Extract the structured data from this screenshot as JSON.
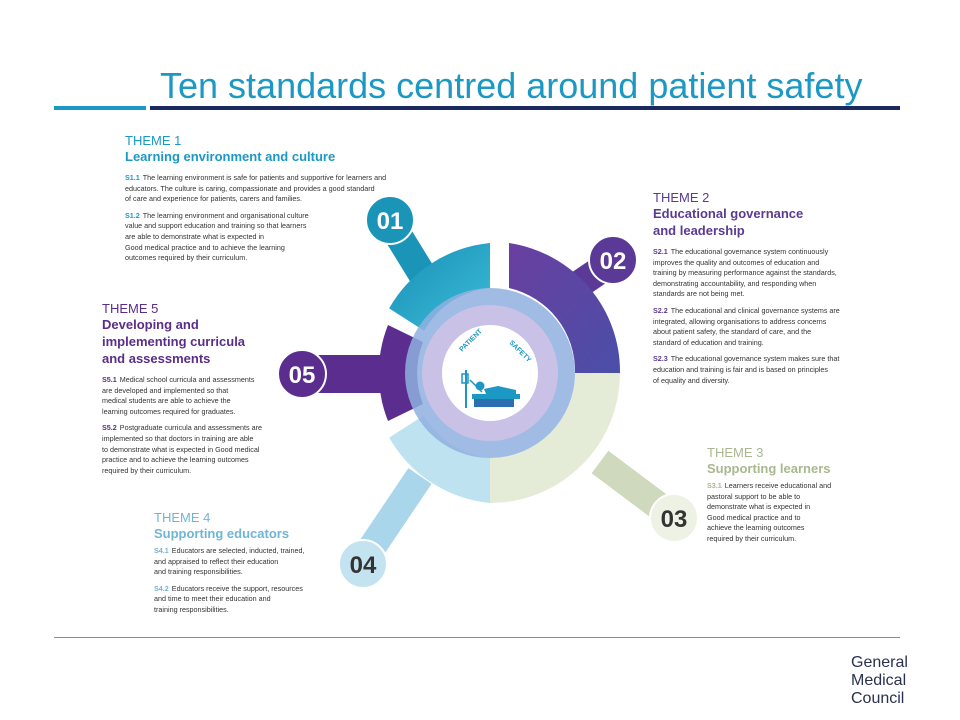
{
  "slide": {
    "title": "Ten standards centred around patient safety"
  },
  "center": {
    "label_left": "PATIENT",
    "label_right": "SAFETY",
    "icon": "patient-in-bed-icon"
  },
  "colors": {
    "title": "#1c98c5",
    "rule_dark": "#1a2a5e",
    "theme1": "#1c98c5",
    "theme2": "#5b3a92",
    "theme3": "#a8b88f",
    "theme4": "#6fb5d6",
    "theme5": "#5b2d8a"
  },
  "themes": [
    {
      "label": "THEME 1",
      "name": "Learning environment and culture",
      "badge": "01",
      "standards": [
        {
          "code": "S1.1",
          "text": "The learning environment is safe for patients and supportive for learners and\neducators. The culture is caring, compassionate and provides a good standard\nof care and experience for patients, carers and families."
        },
        {
          "code": "S1.2",
          "text": "The learning environment and organisational culture\nvalue and support education and training so that learners\nare able to demonstrate what is expected in\nGood medical practice and to achieve the learning\noutcomes required by their curriculum."
        }
      ]
    },
    {
      "label": "THEME 2",
      "name": "Educational governance\nand leadership",
      "badge": "02",
      "standards": [
        {
          "code": "S2.1",
          "text": "The educational governance system continuously\nimproves the quality and outcomes of education and\ntraining by measuring performance against the standards,\ndemonstrating accountability, and responding when\nstandards are not being met."
        },
        {
          "code": "S2.2",
          "text": "The educational and clinical governance systems are\nintegrated, allowing organisations to address concerns\nabout patient safety, the standard of care, and the\nstandard of education and training."
        },
        {
          "code": "S2.3",
          "text": "The educational governance system makes sure that\neducation and training is fair and is based on principles\nof equality and diversity."
        }
      ]
    },
    {
      "label": "THEME 3",
      "name": "Supporting learners",
      "badge": "03",
      "standards": [
        {
          "code": "S3.1",
          "text": "Learners receive educational and\npastoral support to be able to\ndemonstrate what is expected in\nGood medical practice and to\nachieve the learning outcomes\nrequired by their curriculum."
        }
      ]
    },
    {
      "label": "THEME 4",
      "name": "Supporting educators",
      "badge": "04",
      "standards": [
        {
          "code": "S4.1",
          "text": "Educators are selected, inducted, trained,\nand appraised to reflect their education\nand training responsibilities."
        },
        {
          "code": "S4.2",
          "text": "Educators receive the support, resources\nand time to meet their education and\ntraining responsibilities."
        }
      ]
    },
    {
      "label": "THEME 5",
      "name": "Developing and\nimplementing curricula\nand assessments",
      "badge": "05",
      "standards": [
        {
          "code": "S5.1",
          "text": "Medical school curricula and assessments\nare developed and implemented so that\nmedical students are able to achieve the\nlearning outcomes required for graduates."
        },
        {
          "code": "S5.2",
          "text": "Postgraduate curricula and assessments are\nimplemented so that doctors in training are able\nto demonstrate what is expected in Good medical\npractice and to achieve the learning outcomes\nrequired by their curriculum."
        }
      ]
    }
  ],
  "footer": {
    "logo_text": "General\nMedical\nCouncil"
  }
}
